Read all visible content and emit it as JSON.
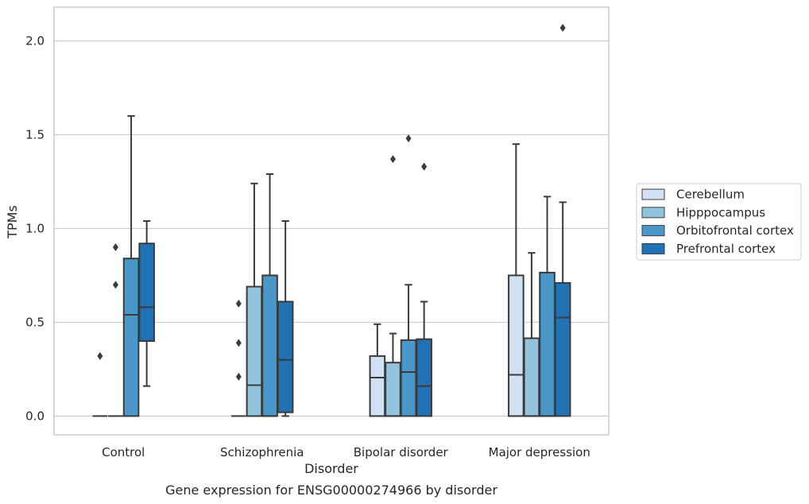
{
  "chart_data": {
    "type": "box",
    "title": "",
    "caption": "Gene expression for ENSG00000274966 by disorder",
    "xlabel": "Disorder",
    "ylabel": "TPMs",
    "ylim": [
      -0.1,
      2.18
    ],
    "yticks": [
      0.0,
      0.5,
      1.0,
      1.5,
      2.0
    ],
    "ytick_labels": [
      "0.0",
      "0.5",
      "1.0",
      "1.5",
      "2.0"
    ],
    "grid": "horizontal",
    "legend_position": "right",
    "categories": [
      "Control",
      "Schizophrenia",
      "Bipolar disorder",
      "Major depression"
    ],
    "series": [
      {
        "name": "Cerebellum",
        "color": "#cfe1f2",
        "boxes": [
          {
            "q1": 0.0,
            "median": 0.0,
            "q3": 0.0,
            "whisker_low": 0.0,
            "whisker_high": 0.0,
            "outliers": [
              0.32
            ]
          },
          {
            "q1": 0.0,
            "median": 0.0,
            "q3": 0.0,
            "whisker_low": 0.0,
            "whisker_high": 0.0,
            "outliers": [
              0.21,
              0.39,
              0.6
            ]
          },
          {
            "q1": 0.0,
            "median": 0.205,
            "q3": 0.32,
            "whisker_low": 0.0,
            "whisker_high": 0.49,
            "outliers": []
          },
          {
            "q1": 0.0,
            "median": 0.22,
            "q3": 0.75,
            "whisker_low": 0.0,
            "whisker_high": 1.45,
            "outliers": []
          }
        ]
      },
      {
        "name": "Hipppocampus",
        "color": "#93c4de",
        "boxes": [
          {
            "q1": 0.0,
            "median": 0.0,
            "q3": 0.0,
            "whisker_low": 0.0,
            "whisker_high": 0.0,
            "outliers": [
              0.7,
              0.9
            ]
          },
          {
            "q1": 0.0,
            "median": 0.165,
            "q3": 0.69,
            "whisker_low": 0.0,
            "whisker_high": 1.24,
            "outliers": []
          },
          {
            "q1": 0.0,
            "median": 0.0,
            "q3": 0.285,
            "whisker_low": 0.0,
            "whisker_high": 0.44,
            "outliers": [
              1.37
            ]
          },
          {
            "q1": 0.0,
            "median": 0.0,
            "q3": 0.415,
            "whisker_low": 0.0,
            "whisker_high": 0.87,
            "outliers": []
          }
        ]
      },
      {
        "name": "Orbitofrontal cortex",
        "color": "#4a98c9",
        "boxes": [
          {
            "q1": 0.0,
            "median": 0.54,
            "q3": 0.84,
            "whisker_low": 0.0,
            "whisker_high": 1.6,
            "outliers": []
          },
          {
            "q1": 0.0,
            "median": 0.0,
            "q3": 0.75,
            "whisker_low": 0.0,
            "whisker_high": 1.29,
            "outliers": []
          },
          {
            "q1": 0.0,
            "median": 0.235,
            "q3": 0.405,
            "whisker_low": 0.0,
            "whisker_high": 0.7,
            "outliers": [
              1.48
            ]
          },
          {
            "q1": 0.0,
            "median": 0.0,
            "q3": 0.765,
            "whisker_low": 0.0,
            "whisker_high": 1.17,
            "outliers": []
          }
        ]
      },
      {
        "name": "Prefrontal cortex",
        "color": "#2171b5",
        "boxes": [
          {
            "q1": 0.4,
            "median": 0.58,
            "q3": 0.92,
            "whisker_low": 0.16,
            "whisker_high": 1.04,
            "outliers": []
          },
          {
            "q1": 0.02,
            "median": 0.3,
            "q3": 0.61,
            "whisker_low": 0.0,
            "whisker_high": 1.04,
            "outliers": []
          },
          {
            "q1": 0.0,
            "median": 0.16,
            "q3": 0.41,
            "whisker_low": 0.0,
            "whisker_high": 0.61,
            "outliers": [
              1.33
            ]
          },
          {
            "q1": 0.0,
            "median": 0.525,
            "q3": 0.71,
            "whisker_low": 0.0,
            "whisker_high": 1.14,
            "outliers": [
              2.07
            ]
          }
        ]
      }
    ]
  }
}
